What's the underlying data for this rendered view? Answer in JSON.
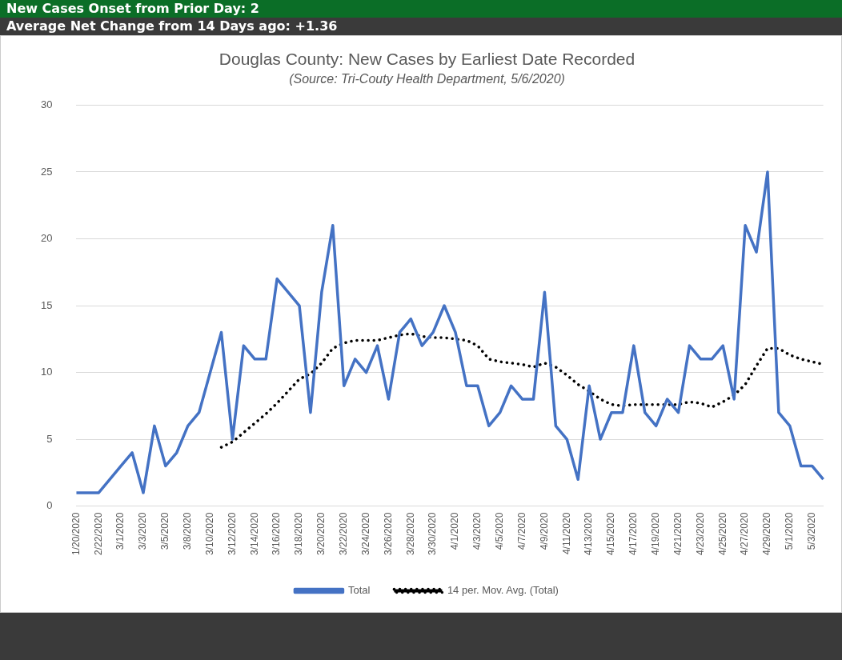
{
  "chart_data": {
    "type": "line",
    "title": "Douglas County: New Cases by Earliest Date Recorded",
    "subtitle": "(Source: Tri-Couty Health Department, 5/6/2020)",
    "annotations": [
      "New Cases Onset from Prior Day: 2",
      "Average Net Change from 14 Days ago:  +1.36"
    ],
    "categories": [
      "1/20/2020",
      null,
      "2/22/2020",
      null,
      "3/1/2020",
      null,
      "3/3/2020",
      null,
      "3/5/2020",
      null,
      "3/8/2020",
      null,
      "3/10/2020",
      null,
      "3/12/2020",
      null,
      "3/14/2020",
      null,
      "3/16/2020",
      null,
      "3/18/2020",
      null,
      "3/20/2020",
      null,
      "3/22/2020",
      null,
      "3/24/2020",
      null,
      "3/26/2020",
      null,
      "3/28/2020",
      null,
      "3/30/2020",
      null,
      "4/1/2020",
      null,
      "4/3/2020",
      null,
      "4/5/2020",
      null,
      "4/7/2020",
      null,
      "4/9/2020",
      null,
      "4/11/2020",
      null,
      "4/13/2020",
      null,
      "4/15/2020",
      null,
      "4/17/2020",
      null,
      "4/19/2020",
      null,
      "4/21/2020",
      null,
      "4/23/2020",
      null,
      "4/25/2020",
      null,
      "4/27/2020",
      null,
      "4/29/2020",
      null,
      "5/1/2020",
      null,
      "5/3/2020",
      null
    ],
    "series": [
      {
        "name": "Total",
        "color": "#4472c4",
        "line_style": "solid",
        "values": [
          1,
          1,
          1,
          2,
          3,
          4,
          1,
          6,
          3,
          4,
          6,
          7,
          10,
          13,
          5,
          12,
          11,
          11,
          17,
          16,
          15,
          7,
          16,
          21,
          9,
          11,
          10,
          12,
          8,
          13,
          14,
          12,
          13,
          15,
          13,
          9,
          9,
          6,
          7,
          9,
          8,
          8,
          16,
          6,
          5,
          2,
          9,
          5,
          7,
          7,
          12,
          7,
          6,
          8,
          7,
          12,
          11,
          11,
          12,
          8,
          21,
          19,
          25,
          7,
          6,
          3,
          3,
          2
        ]
      },
      {
        "name": "14 per. Mov. Avg. (Total)",
        "color": "#000000",
        "line_style": "dotted",
        "values": [
          null,
          null,
          null,
          null,
          null,
          null,
          null,
          null,
          null,
          null,
          null,
          null,
          null,
          4.4,
          4.8,
          5.5,
          6.2,
          6.9,
          7.7,
          8.6,
          9.5,
          9.9,
          10.7,
          11.8,
          12.2,
          12.4,
          12.4,
          12.4,
          12.6,
          12.8,
          12.9,
          12.7,
          12.6,
          12.6,
          12.5,
          12.4,
          12.0,
          11.0,
          10.8,
          10.7,
          10.6,
          10.4,
          10.7,
          10.4,
          9.8,
          9.1,
          8.6,
          8.0,
          7.6,
          7.5,
          7.6,
          7.6,
          7.6,
          7.6,
          7.6,
          7.8,
          7.7,
          7.4,
          7.8,
          8.3,
          9.1,
          10.5,
          11.8,
          11.8,
          11.3,
          11.0,
          10.8,
          10.6
        ]
      }
    ],
    "ylim": [
      0,
      30
    ],
    "yticks": [
      0,
      5,
      10,
      15,
      20,
      25,
      30
    ],
    "grid": "y",
    "legend": "bottom",
    "marker": "none"
  }
}
